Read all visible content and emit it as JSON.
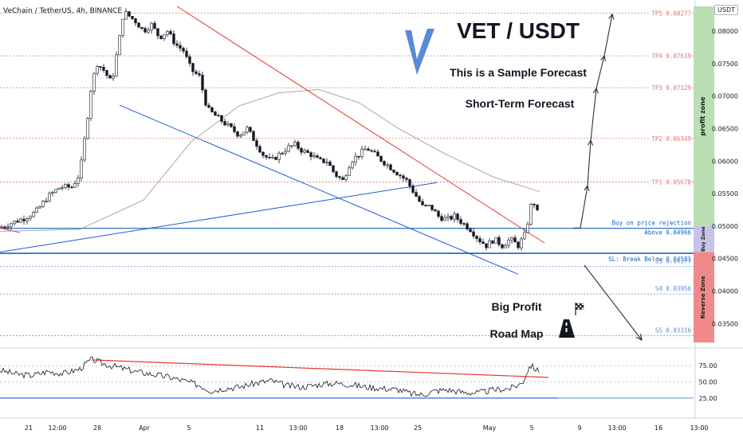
{
  "header": {
    "symbol": "VeChain / TetherUS, 4h, BINANCE",
    "unit_badge": "USDT"
  },
  "annotations": {
    "title": "VET / USDT",
    "subtitle1": "This is a Sample Forecast",
    "subtitle2": "Short-Term Forecast",
    "big_profit": "Big Profit",
    "road_map": "Road Map",
    "profit_zone": "profit zone",
    "buy_zone": "Buy Zone",
    "reverse_zone": "Reverse Zone"
  },
  "chart_data": {
    "type": "candlestick",
    "y_axis_ticks": [
      "0.08000",
      "0.07500",
      "0.07000",
      "0.06500",
      "0.06000",
      "0.05500",
      "0.05000",
      "0.04500",
      "0.04000",
      "0.03500"
    ],
    "ylim": [
      0.0321,
      0.0838
    ],
    "x_tick_labels": [
      "21",
      "12:00",
      "28",
      "Apr",
      "5",
      "11",
      "13:00",
      "18",
      "13:00",
      "25",
      "May",
      "5",
      "9",
      "13:00",
      "16",
      "13:00"
    ],
    "levels": [
      {
        "label": "TP5 0.08277",
        "price": 0.08277,
        "color": "#e57373"
      },
      {
        "label": "TP4 0.07619",
        "price": 0.07619,
        "color": "#e57373"
      },
      {
        "label": "TP3 0.07129",
        "price": 0.07129,
        "color": "#e57373"
      },
      {
        "label": "TP2 0.06349",
        "price": 0.06349,
        "color": "#e57373"
      },
      {
        "label": "TP1 0.05678",
        "price": 0.05678,
        "color": "#e57373"
      },
      {
        "label": "Buy on price rejection",
        "price": 0.0497,
        "color": "#1565c0"
      },
      {
        "label": "Above 0.04966",
        "price": 0.04966,
        "color": "#1565c0"
      },
      {
        "label": "SL: Break Below 0.04581",
        "price": 0.04581,
        "color": "#1565c0"
      },
      {
        "label": "S3 0.04377",
        "price": 0.04377,
        "color": "#5b8dd6"
      },
      {
        "label": "S4 0.03956",
        "price": 0.03956,
        "color": "#5b8dd6"
      },
      {
        "label": "S5 0.03316",
        "price": 0.03316,
        "color": "#5b8dd6"
      }
    ],
    "price_path": [
      [
        0,
        0.0498
      ],
      [
        15,
        0.0505
      ],
      [
        30,
        0.0512
      ],
      [
        45,
        0.0522
      ],
      [
        60,
        0.0545
      ],
      [
        75,
        0.056
      ],
      [
        90,
        0.056
      ],
      [
        100,
        0.058
      ],
      [
        108,
        0.065
      ],
      [
        115,
        0.072
      ],
      [
        122,
        0.075
      ],
      [
        130,
        0.074
      ],
      [
        140,
        0.072
      ],
      [
        150,
        0.079
      ],
      [
        155,
        0.083
      ],
      [
        160,
        0.0825
      ],
      [
        170,
        0.0815
      ],
      [
        180,
        0.08
      ],
      [
        190,
        0.081
      ],
      [
        200,
        0.079
      ],
      [
        210,
        0.08
      ],
      [
        220,
        0.078
      ],
      [
        230,
        0.077
      ],
      [
        240,
        0.074
      ],
      [
        250,
        0.073
      ],
      [
        260,
        0.068
      ],
      [
        270,
        0.067
      ],
      [
        280,
        0.066
      ],
      [
        290,
        0.065
      ],
      [
        300,
        0.064
      ],
      [
        310,
        0.065
      ],
      [
        320,
        0.063
      ],
      [
        330,
        0.061
      ],
      [
        340,
        0.06
      ],
      [
        350,
        0.061
      ],
      [
        360,
        0.062
      ],
      [
        370,
        0.0625
      ],
      [
        380,
        0.0615
      ],
      [
        390,
        0.061
      ],
      [
        400,
        0.06
      ],
      [
        410,
        0.06
      ],
      [
        420,
        0.058
      ],
      [
        430,
        0.057
      ],
      [
        440,
        0.06
      ],
      [
        450,
        0.061
      ],
      [
        460,
        0.062
      ],
      [
        470,
        0.061
      ],
      [
        480,
        0.06
      ],
      [
        490,
        0.059
      ],
      [
        500,
        0.058
      ],
      [
        510,
        0.057
      ],
      [
        520,
        0.055
      ],
      [
        530,
        0.053
      ],
      [
        540,
        0.053
      ],
      [
        550,
        0.0515
      ],
      [
        560,
        0.051
      ],
      [
        570,
        0.0515
      ],
      [
        580,
        0.0505
      ],
      [
        590,
        0.0495
      ],
      [
        600,
        0.048
      ],
      [
        610,
        0.047
      ],
      [
        620,
        0.048
      ],
      [
        630,
        0.047
      ],
      [
        640,
        0.048
      ],
      [
        650,
        0.047
      ],
      [
        660,
        0.049
      ],
      [
        665,
        0.053
      ],
      [
        670,
        0.0535
      ],
      [
        677,
        0.051
      ]
    ],
    "indicator": {
      "y_ticks": [
        "75.00",
        "50.00",
        "25.00"
      ],
      "ylim": [
        10,
        95
      ],
      "path": [
        [
          0,
          68
        ],
        [
          20,
          62
        ],
        [
          40,
          60
        ],
        [
          60,
          66
        ],
        [
          80,
          63
        ],
        [
          100,
          70
        ],
        [
          115,
          85
        ],
        [
          130,
          78
        ],
        [
          150,
          72
        ],
        [
          170,
          66
        ],
        [
          190,
          62
        ],
        [
          210,
          58
        ],
        [
          230,
          52
        ],
        [
          250,
          45
        ],
        [
          265,
          36
        ],
        [
          280,
          40
        ],
        [
          300,
          42
        ],
        [
          320,
          48
        ],
        [
          340,
          52
        ],
        [
          360,
          44
        ],
        [
          380,
          42
        ],
        [
          400,
          46
        ],
        [
          420,
          48
        ],
        [
          440,
          46
        ],
        [
          460,
          42
        ],
        [
          480,
          40
        ],
        [
          500,
          38
        ],
        [
          515,
          32
        ],
        [
          530,
          30
        ],
        [
          545,
          36
        ],
        [
          560,
          38
        ],
        [
          580,
          34
        ],
        [
          600,
          33
        ],
        [
          620,
          38
        ],
        [
          640,
          40
        ],
        [
          655,
          48
        ],
        [
          665,
          76
        ],
        [
          677,
          65
        ]
      ]
    }
  }
}
